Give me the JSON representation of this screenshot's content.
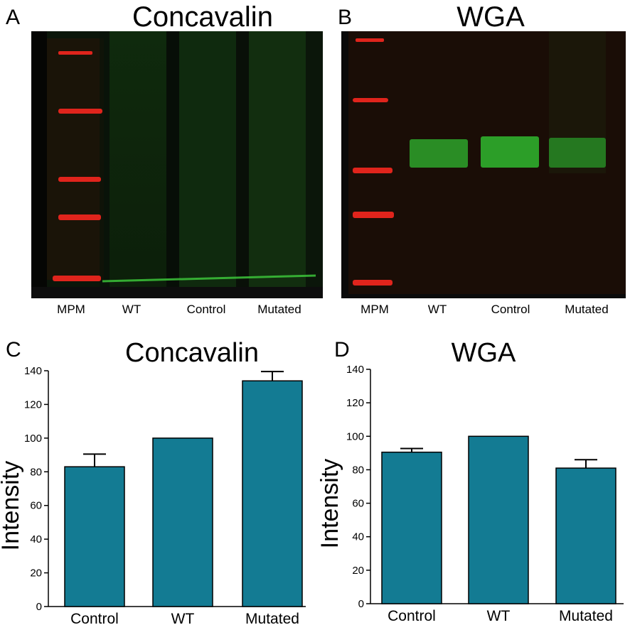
{
  "panels": {
    "a": {
      "letter": "A",
      "title": "Concavalin",
      "lanes": [
        "MPM",
        "WT",
        "Control",
        "Mutated"
      ]
    },
    "b": {
      "letter": "B",
      "title": "WGA",
      "lanes": [
        "MPM",
        "WT",
        "Control",
        "Mutated"
      ]
    },
    "c": {
      "letter": "C"
    },
    "d": {
      "letter": "D"
    }
  },
  "colors": {
    "bar": "#137b93",
    "marker": "#e0241c",
    "band": "#3cc43a",
    "gel_bg": "#1a0d06"
  },
  "chart_data": [
    {
      "type": "bar",
      "title": "Concavalin",
      "ylabel": "Intensity",
      "xlabel": "",
      "categories": [
        "Control",
        "WT",
        "Mutated"
      ],
      "values": [
        83,
        100,
        134
      ],
      "errors": [
        7.5,
        0,
        5.5
      ],
      "ylim": [
        0,
        140
      ],
      "yticks": [
        0,
        20,
        40,
        60,
        80,
        100,
        120,
        140
      ],
      "grid": false
    },
    {
      "type": "bar",
      "title": "WGA",
      "ylabel": "Intensity",
      "xlabel": "",
      "categories": [
        "Control",
        "WT",
        "Mutated"
      ],
      "values": [
        90.5,
        100,
        81
      ],
      "errors": [
        2.2,
        0,
        5
      ],
      "ylim": [
        0,
        140
      ],
      "yticks": [
        0,
        20,
        40,
        60,
        80,
        100,
        120,
        140
      ],
      "grid": false
    }
  ]
}
